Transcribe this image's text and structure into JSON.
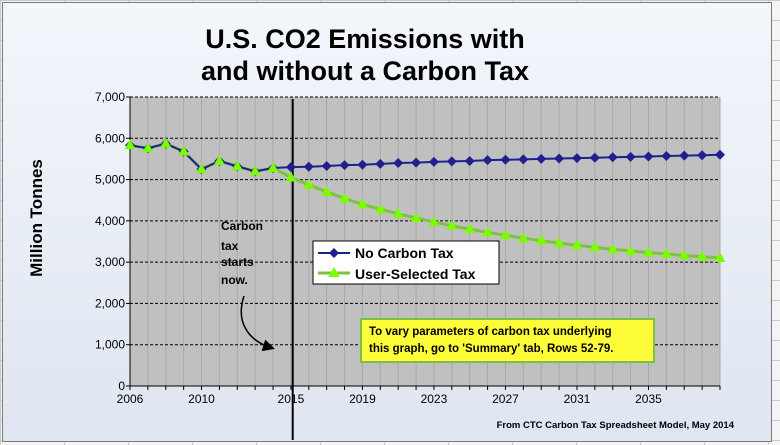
{
  "chart_data": {
    "type": "line",
    "title_line1": "U.S. CO2 Emissions with",
    "title_line2": "and without a Carbon Tax",
    "ylabel": "Million Tonnes",
    "xlabel": "",
    "ylim": [
      0,
      7000
    ],
    "xlim": [
      2006,
      2039
    ],
    "yticks": [
      "0",
      "1,000",
      "2,000",
      "3,000",
      "4,000",
      "5,000",
      "6,000",
      "7,000"
    ],
    "ytick_values": [
      0,
      1000,
      2000,
      3000,
      4000,
      5000,
      6000,
      7000
    ],
    "xticks": [
      "2006",
      "2010",
      "2015",
      "2019",
      "2023",
      "2027",
      "2031",
      "2035"
    ],
    "xtick_values": [
      2006,
      2010,
      2015,
      2019,
      2023,
      2027,
      2031,
      2035
    ],
    "grid": true,
    "legend_position": "center-right",
    "x": [
      2006,
      2007,
      2008,
      2009,
      2010,
      2011,
      2012,
      2013,
      2014,
      2015,
      2016,
      2017,
      2018,
      2019,
      2020,
      2021,
      2022,
      2023,
      2024,
      2025,
      2026,
      2027,
      2028,
      2029,
      2030,
      2031,
      2032,
      2033,
      2034,
      2035,
      2036,
      2037,
      2038,
      2039
    ],
    "series": [
      {
        "name": "No Carbon Tax",
        "color": "#1f1f8f",
        "marker": "diamond",
        "values": [
          5830,
          5760,
          5870,
          5680,
          5250,
          5450,
          5320,
          5200,
          5280,
          5300,
          5310,
          5330,
          5350,
          5360,
          5380,
          5400,
          5410,
          5430,
          5440,
          5450,
          5470,
          5480,
          5490,
          5500,
          5510,
          5520,
          5530,
          5540,
          5550,
          5560,
          5570,
          5580,
          5590,
          5600
        ]
      },
      {
        "name": "User-Selected Tax",
        "color": "#7dc242",
        "marker_color": "#7cfc00",
        "marker": "triangle",
        "values": [
          5830,
          5760,
          5870,
          5680,
          5250,
          5450,
          5320,
          5200,
          5280,
          5050,
          4870,
          4700,
          4540,
          4400,
          4280,
          4170,
          4070,
          3970,
          3880,
          3800,
          3720,
          3650,
          3580,
          3520,
          3460,
          3410,
          3360,
          3310,
          3270,
          3230,
          3200,
          3160,
          3130,
          3100
        ]
      }
    ],
    "annotation_lines": [
      "Carbon",
      "tax",
      "starts",
      "now."
    ],
    "vertical_marker_x": 2015.1,
    "note_lines": [
      "To vary parameters of carbon  tax underlying",
      "this graph, go to 'Summary' tab, Rows 52-79."
    ],
    "note_bg": "#fdfd3a",
    "source": "From CTC Carbon Tax Spreadsheet Model, May 2014",
    "plot_bg": "#c0c0c0"
  }
}
